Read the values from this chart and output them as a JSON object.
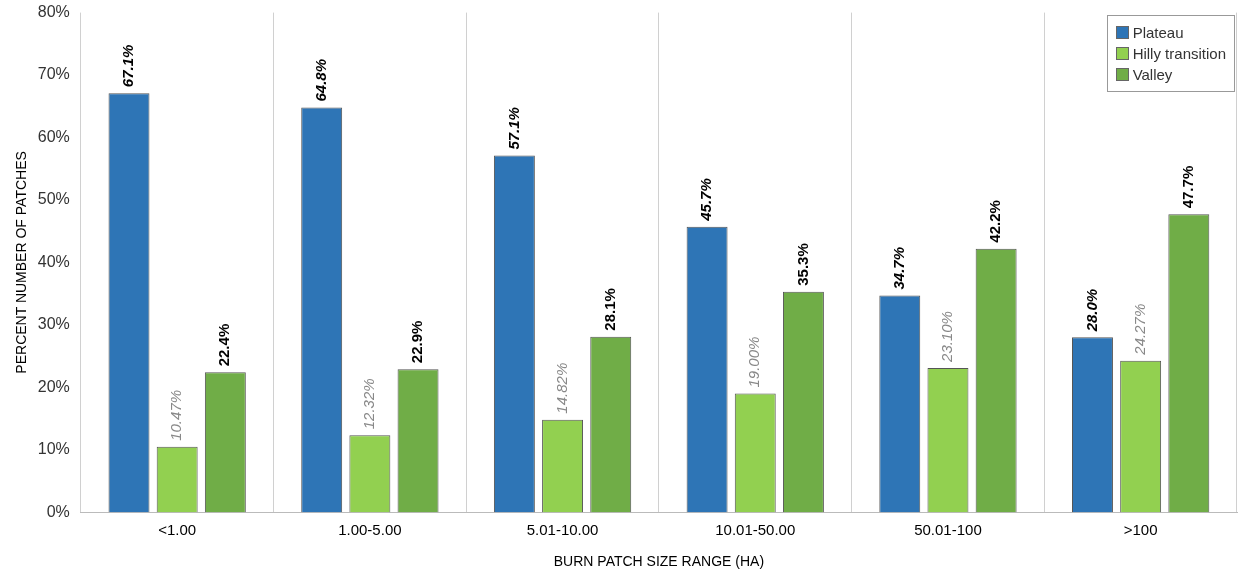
{
  "chart_data": {
    "type": "bar",
    "xlabel": "BURN PATCH SIZE RANGE (HA)",
    "ylabel": "PERCENT NUMBER OF PATCHES",
    "categories": [
      "<1.00",
      "1.00-5.00",
      "5.01-10.00",
      "10.01-50.00",
      "50.01-100",
      ">100"
    ],
    "series": [
      {
        "name": "Plateau",
        "color": "#2e75b6",
        "values": [
          67.1,
          64.8,
          57.1,
          45.7,
          34.7,
          28.0
        ],
        "value_labels": [
          "67.1%",
          "64.8%",
          "57.1%",
          "45.7%",
          "34.7%",
          "28.0%"
        ]
      },
      {
        "name": "Hilly transition",
        "color": "#92d050",
        "values": [
          10.47,
          12.32,
          14.82,
          19.0,
          23.1,
          24.27
        ],
        "value_labels": [
          "10.47%",
          "12.32%",
          "14.82%",
          "19.00%",
          "23.10%",
          "24.27%"
        ]
      },
      {
        "name": "Valley",
        "color": "#70ad47",
        "values": [
          22.4,
          22.9,
          28.1,
          35.3,
          42.2,
          47.7
        ],
        "value_labels": [
          "22.4%",
          "22.9%",
          "28.1%",
          "35.3%",
          "42.2%",
          "47.7%"
        ]
      }
    ],
    "ylim": [
      0,
      80
    ],
    "yticks": [
      {
        "value": 0,
        "label": "0%"
      },
      {
        "value": 10,
        "label": "10%"
      },
      {
        "value": 20,
        "label": "20%"
      },
      {
        "value": 30,
        "label": "30%"
      },
      {
        "value": 40,
        "label": "40%"
      },
      {
        "value": 50,
        "label": "50%"
      },
      {
        "value": 60,
        "label": "60%"
      },
      {
        "value": 70,
        "label": "70%"
      },
      {
        "value": 80,
        "label": "80%"
      }
    ],
    "grid": "x",
    "legend": "top right"
  }
}
